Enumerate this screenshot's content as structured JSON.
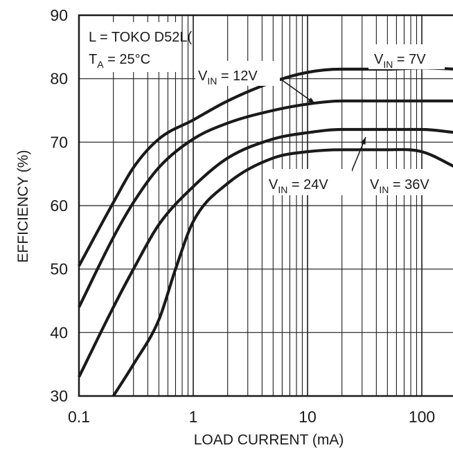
{
  "chart_data": {
    "type": "line",
    "title": "",
    "xlabel": "LOAD CURRENT (mA)",
    "ylabel": "EFFICIENCY (%)",
    "xscale": "log",
    "xlim": [
      0.1,
      200
    ],
    "ylim": [
      30,
      90
    ],
    "grid": true,
    "x_ticks": [
      0.1,
      1,
      10,
      100
    ],
    "x_tick_labels": [
      "0.1",
      "1",
      "10",
      "100"
    ],
    "y_ticks": [
      30,
      40,
      50,
      60,
      70,
      80,
      90
    ],
    "y_tick_labels": [
      "30",
      "40",
      "50",
      "60",
      "70",
      "80",
      "90"
    ],
    "line_color": "#1a1a1a",
    "annotations": {
      "inductor": "L = TOKO D52L(",
      "temp_main": "T",
      "temp_sub": "A",
      "temp_rest": " = 25°C"
    },
    "series": [
      {
        "name": "VIN = 7V",
        "label_main": "V",
        "label_sub": "IN",
        "label_rest": " = 7V",
        "x": [
          0.1,
          0.2,
          0.3,
          0.5,
          1,
          2,
          5,
          10,
          20,
          50,
          100,
          200
        ],
        "y": [
          50.5,
          60.5,
          66,
          70.5,
          73.5,
          76.5,
          79.5,
          81,
          81.5,
          81.5,
          81.7,
          81.5
        ]
      },
      {
        "name": "VIN = 12V",
        "label_main": "V",
        "label_sub": "IN",
        "label_rest": " = 12V",
        "x": [
          0.1,
          0.2,
          0.3,
          0.5,
          1,
          2,
          5,
          10,
          20,
          50,
          100,
          200
        ],
        "y": [
          44,
          55,
          60.5,
          66,
          70.5,
          73,
          75,
          76,
          76.5,
          76.5,
          76.5,
          76.5
        ]
      },
      {
        "name": "VIN = 24V",
        "label_main": "V",
        "label_sub": "IN",
        "label_rest": " = 24V",
        "x": [
          0.1,
          0.2,
          0.3,
          0.5,
          1,
          2,
          5,
          10,
          20,
          50,
          100,
          200
        ],
        "y": [
          33,
          44,
          50,
          57,
          63,
          67.5,
          70.5,
          71.5,
          72,
          72,
          72,
          71.5
        ]
      },
      {
        "name": "VIN = 36V",
        "label_main": "V",
        "label_sub": "IN",
        "label_rest": " = 36V",
        "x": [
          0.2,
          0.3,
          0.5,
          0.7,
          1,
          2,
          5,
          10,
          20,
          50,
          100,
          200
        ],
        "y": [
          30,
          35,
          42,
          50,
          57.5,
          63.5,
          67.5,
          68.5,
          68.8,
          68.8,
          68.5,
          66
        ]
      }
    ]
  }
}
